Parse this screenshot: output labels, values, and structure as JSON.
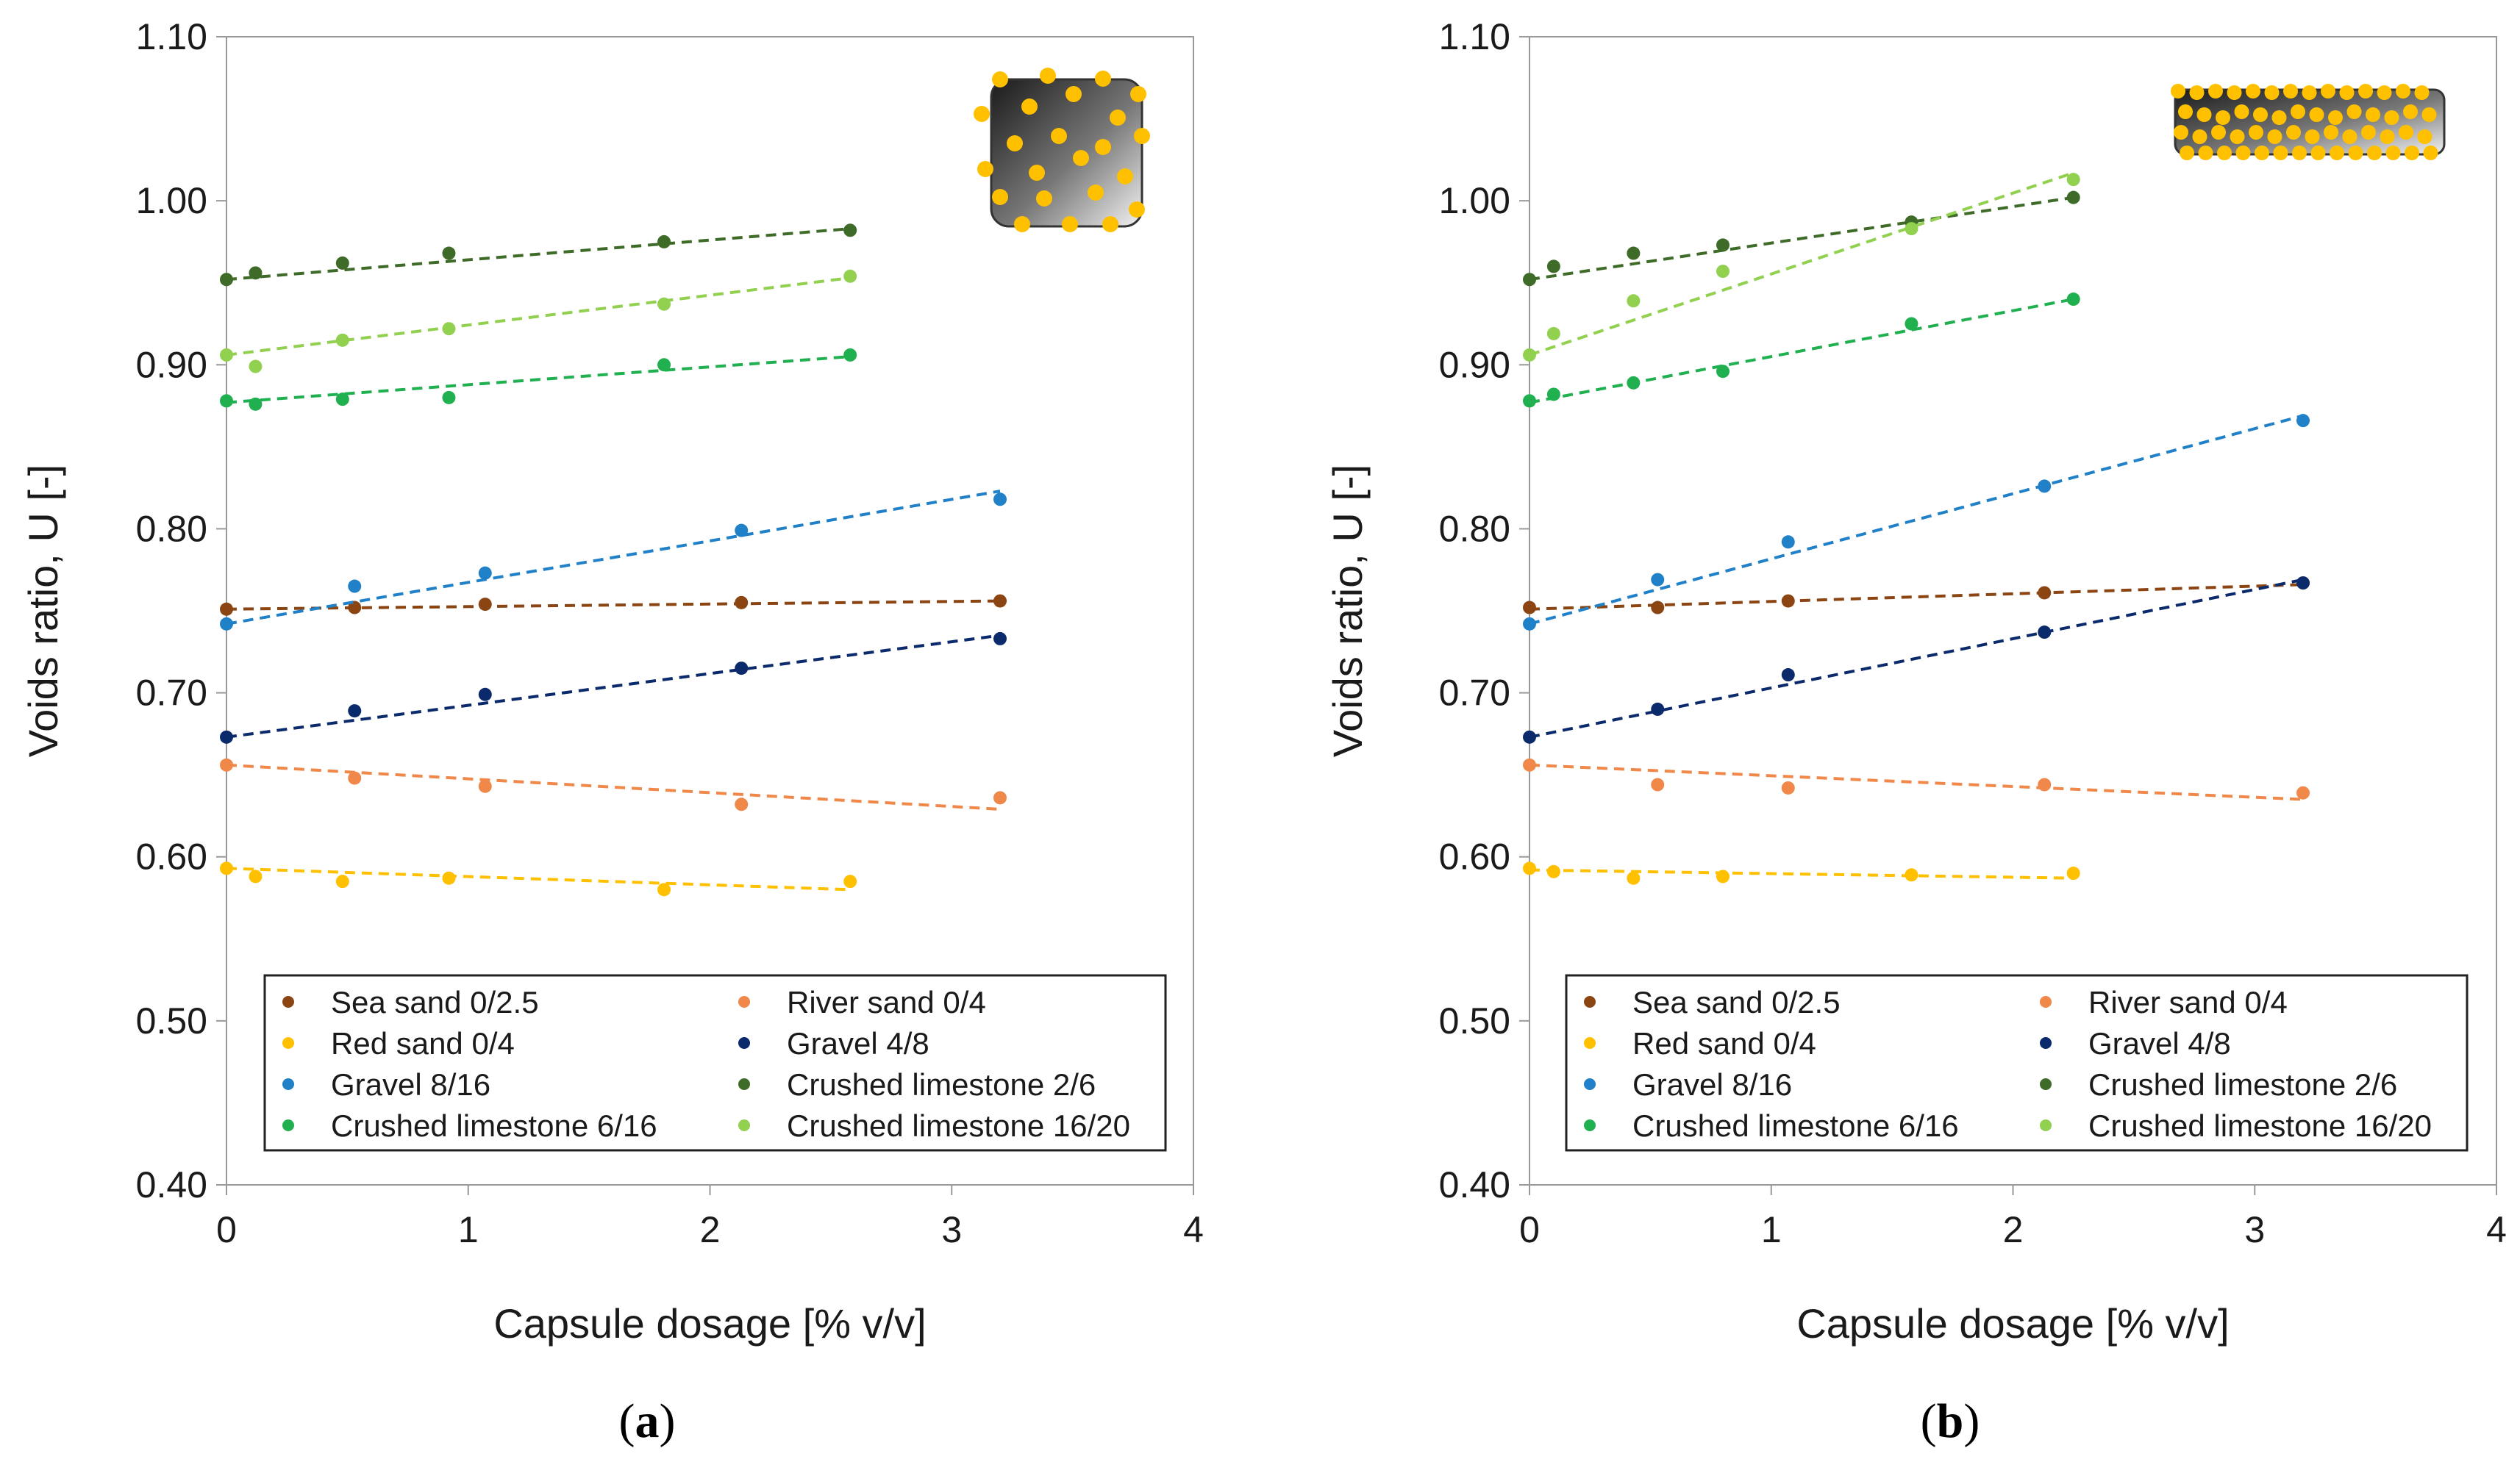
{
  "chart_data": [
    {
      "type": "scatter",
      "panel_label": "a",
      "caption_open": "(",
      "caption_letter": "a",
      "caption_close": ")",
      "xlabel": "Capsule dosage [% v/v]",
      "ylabel": "Voids ratio, U [-]",
      "xlim": [
        0,
        4
      ],
      "ylim": [
        0.4,
        1.1
      ],
      "xticks": [
        "0",
        "1",
        "2",
        "3",
        "4"
      ],
      "yticks": [
        "0.40",
        "0.50",
        "0.60",
        "0.70",
        "0.80",
        "0.90",
        "1.00",
        "1.10"
      ],
      "legend_placement": "bottom",
      "inset_icon": "square-capsule-icon",
      "series": [
        {
          "name": "Sea sand 0/2.5",
          "color": "#8B4513",
          "x": [
            0,
            0.53,
            1.07,
            2.13,
            3.2
          ],
          "y": [
            0.751,
            0.752,
            0.754,
            0.755,
            0.756
          ],
          "fit": [
            [
              0,
              0.751
            ],
            [
              3.2,
              0.756
            ]
          ]
        },
        {
          "name": "River sand 0/4",
          "color": "#F0884A",
          "x": [
            0,
            0.53,
            1.07,
            2.13,
            3.2
          ],
          "y": [
            0.656,
            0.648,
            0.643,
            0.632,
            0.636
          ],
          "fit": [
            [
              0,
              0.656
            ],
            [
              3.2,
              0.629
            ]
          ]
        },
        {
          "name": "Red sand 0/4",
          "color": "#FFC000",
          "x": [
            0,
            0.12,
            0.48,
            0.92,
            1.81,
            2.58
          ],
          "y": [
            0.593,
            0.588,
            0.585,
            0.587,
            0.58,
            0.585
          ],
          "fit": [
            [
              0,
              0.593
            ],
            [
              2.58,
              0.58
            ]
          ]
        },
        {
          "name": "Gravel 4/8",
          "color": "#0B2A6B",
          "x": [
            0,
            0.53,
            1.07,
            2.13,
            3.2
          ],
          "y": [
            0.673,
            0.689,
            0.699,
            0.715,
            0.733
          ],
          "fit": [
            [
              0,
              0.673
            ],
            [
              3.2,
              0.735
            ]
          ]
        },
        {
          "name": "Gravel 8/16",
          "color": "#2080C8",
          "x": [
            0,
            0.53,
            1.07,
            2.13,
            3.2
          ],
          "y": [
            0.742,
            0.765,
            0.773,
            0.799,
            0.818
          ],
          "fit": [
            [
              0,
              0.742
            ],
            [
              3.2,
              0.823
            ]
          ]
        },
        {
          "name": "Crushed limestone 2/6",
          "color": "#3E6B28",
          "x": [
            0,
            0.12,
            0.48,
            0.92,
            1.81,
            2.58
          ],
          "y": [
            0.952,
            0.956,
            0.962,
            0.968,
            0.975,
            0.982
          ],
          "fit": [
            [
              0,
              0.952
            ],
            [
              2.58,
              0.983
            ]
          ]
        },
        {
          "name": "Crushed limestone 6/16",
          "color": "#20B050",
          "x": [
            0,
            0.12,
            0.48,
            0.92,
            1.81,
            2.58
          ],
          "y": [
            0.878,
            0.876,
            0.879,
            0.88,
            0.9,
            0.906
          ],
          "fit": [
            [
              0,
              0.877
            ],
            [
              2.58,
              0.905
            ]
          ]
        },
        {
          "name": "Crushed limestone 16/20",
          "color": "#92D050",
          "x": [
            0,
            0.12,
            0.48,
            0.92,
            1.81,
            2.58
          ],
          "y": [
            0.906,
            0.899,
            0.915,
            0.922,
            0.937,
            0.954
          ],
          "fit": [
            [
              0,
              0.906
            ],
            [
              2.58,
              0.953
            ]
          ]
        }
      ]
    },
    {
      "type": "scatter",
      "panel_label": "b",
      "caption_open": "(",
      "caption_letter": "b",
      "caption_close": ")",
      "xlabel": "Capsule dosage [% v/v]",
      "ylabel": "Voids ratio, U [-]",
      "xlim": [
        0,
        4
      ],
      "ylim": [
        0.4,
        1.1
      ],
      "xticks": [
        "0",
        "1",
        "2",
        "3",
        "4"
      ],
      "yticks": [
        "0.40",
        "0.50",
        "0.60",
        "0.70",
        "0.80",
        "0.90",
        "1.00",
        "1.10"
      ],
      "legend_placement": "bottom",
      "inset_icon": "elongated-capsule-icon",
      "series": [
        {
          "name": "Sea sand 0/2.5",
          "color": "#8B4513",
          "x": [
            0,
            0.53,
            1.07,
            2.13,
            3.2
          ],
          "y": [
            0.752,
            0.752,
            0.756,
            0.761,
            0.767
          ],
          "fit": [
            [
              0,
              0.751
            ],
            [
              3.2,
              0.766
            ]
          ]
        },
        {
          "name": "River sand 0/4",
          "color": "#F0884A",
          "x": [
            0,
            0.53,
            1.07,
            2.13,
            3.2
          ],
          "y": [
            0.656,
            0.644,
            0.642,
            0.644,
            0.639
          ],
          "fit": [
            [
              0,
              0.656
            ],
            [
              3.2,
              0.635
            ]
          ]
        },
        {
          "name": "Red sand 0/4",
          "color": "#FFC000",
          "x": [
            0,
            0.1,
            0.43,
            0.8,
            1.58,
            2.25
          ],
          "y": [
            0.593,
            0.591,
            0.587,
            0.588,
            0.589,
            0.59
          ],
          "fit": [
            [
              0,
              0.592
            ],
            [
              2.25,
              0.587
            ]
          ]
        },
        {
          "name": "Gravel 4/8",
          "color": "#0B2A6B",
          "x": [
            0,
            0.53,
            1.07,
            2.13,
            3.2
          ],
          "y": [
            0.673,
            0.69,
            0.711,
            0.737,
            0.767
          ],
          "fit": [
            [
              0,
              0.673
            ],
            [
              3.2,
              0.769
            ]
          ]
        },
        {
          "name": "Gravel 8/16",
          "color": "#2080C8",
          "x": [
            0,
            0.53,
            1.07,
            2.13,
            3.2
          ],
          "y": [
            0.742,
            0.769,
            0.792,
            0.826,
            0.866
          ],
          "fit": [
            [
              0,
              0.742
            ],
            [
              3.2,
              0.869
            ]
          ]
        },
        {
          "name": "Crushed limestone 2/6",
          "color": "#3E6B28",
          "x": [
            0,
            0.1,
            0.43,
            0.8,
            1.58,
            2.25
          ],
          "y": [
            0.952,
            0.96,
            0.968,
            0.973,
            0.987,
            1.002
          ],
          "fit": [
            [
              0,
              0.952
            ],
            [
              2.25,
              1.002
            ]
          ]
        },
        {
          "name": "Crushed limestone 6/16",
          "color": "#20B050",
          "x": [
            0,
            0.1,
            0.43,
            0.8,
            1.58,
            2.25
          ],
          "y": [
            0.878,
            0.882,
            0.889,
            0.896,
            0.925,
            0.94
          ],
          "fit": [
            [
              0,
              0.877
            ],
            [
              2.25,
              0.94
            ]
          ]
        },
        {
          "name": "Crushed limestone 16/20",
          "color": "#92D050",
          "x": [
            0,
            0.1,
            0.43,
            0.8,
            1.58,
            2.25
          ],
          "y": [
            0.906,
            0.919,
            0.939,
            0.957,
            0.983,
            1.013
          ],
          "fit": [
            [
              0,
              0.906
            ],
            [
              2.25,
              1.017
            ]
          ]
        }
      ]
    }
  ]
}
